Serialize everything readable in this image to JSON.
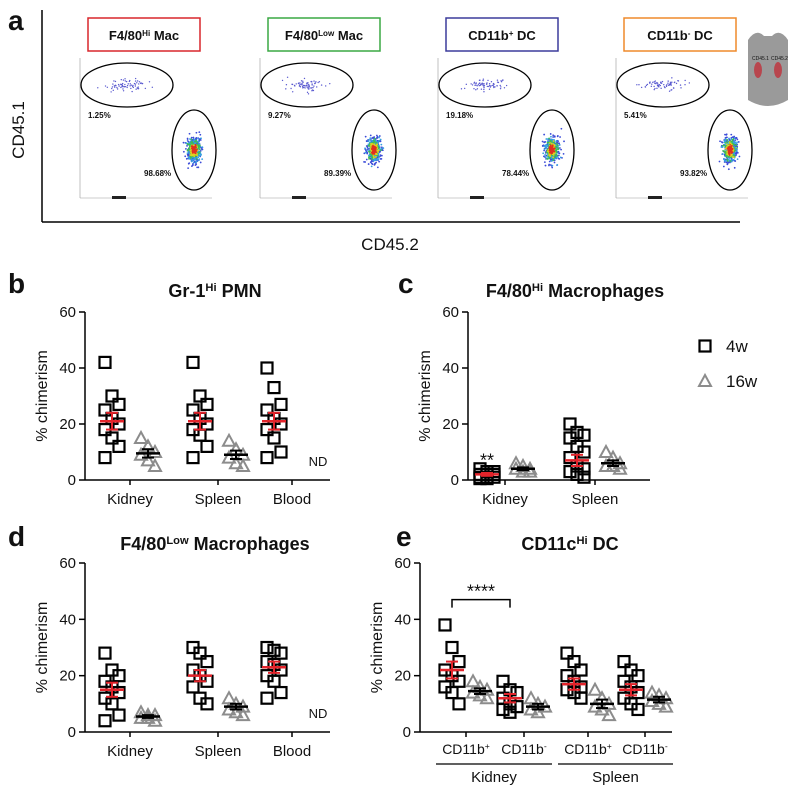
{
  "chart_data": [
    {
      "type": "flow",
      "panel": "a",
      "xlabel": "CD45.2",
      "ylabel": "CD45.1",
      "icon_labels": [
        "CD45.1",
        "CD45.2"
      ],
      "plots": [
        {
          "title": {
            "main": "F4/80",
            "sup": "Hi",
            "rest": " Mac"
          },
          "color": "#d9262c",
          "gates": [
            "1.25%",
            "98.68%"
          ]
        },
        {
          "title": {
            "main": "F4/80",
            "sup": "Low",
            "rest": " Mac"
          },
          "color": "#3aa843",
          "gates": [
            "9.27%",
            "89.39%"
          ]
        },
        {
          "title": {
            "main": "CD11b",
            "sup": "+",
            "rest": " DC"
          },
          "color": "#3b3b9c",
          "gates": [
            "19.18%",
            "78.44%"
          ]
        },
        {
          "title": {
            "main": "CD11b",
            "sup": "-",
            "rest": " DC"
          },
          "color": "#ef8a2b",
          "gates": [
            "5.41%",
            "93.82%"
          ]
        }
      ]
    },
    {
      "type": "dot",
      "panel": "b",
      "title": {
        "main": "Gr-1",
        "sup": "Hi",
        "rest": " PMN"
      },
      "ylabel": "% chimerism",
      "ylim": [
        0,
        60
      ],
      "yticks": [
        0,
        20,
        40,
        60
      ],
      "categories": [
        "Kidney",
        "Spleen",
        "Blood"
      ],
      "nd_label": "ND",
      "series": [
        {
          "name": "4w",
          "marker": "square",
          "color": "#000000",
          "mean_color": "#e3242b",
          "values": [
            [
              42,
              30,
              27,
              25,
              22,
              20,
              18,
              15,
              12,
              8
            ],
            [
              42,
              30,
              27,
              25,
              22,
              20,
              18,
              16,
              12,
              8
            ],
            [
              40,
              33,
              27,
              25,
              22,
              20,
              18,
              15,
              10,
              8
            ]
          ],
          "mean": [
            21,
            21,
            21
          ],
          "sem": [
            3,
            3,
            3
          ]
        },
        {
          "name": "16w",
          "marker": "triangle",
          "color": "#8c8c8c",
          "mean_color": "#000000",
          "values": [
            [
              15,
              12,
              10,
              9,
              7,
              5
            ],
            [
              14,
              11,
              9,
              8,
              6,
              5
            ],
            null
          ],
          "mean": [
            9.5,
            9,
            null
          ],
          "sem": [
            1.5,
            1.5,
            null
          ]
        }
      ]
    },
    {
      "type": "dot",
      "panel": "c",
      "title": {
        "main": "F4/80",
        "sup": "Hi",
        "rest": " Macrophages"
      },
      "ylabel": "% chimerism",
      "ylim": [
        0,
        60
      ],
      "yticks": [
        0,
        20,
        40,
        60
      ],
      "categories": [
        "Kidney",
        "Spleen"
      ],
      "legend": true,
      "significance": "**",
      "series": [
        {
          "name": "4w",
          "marker": "square",
          "color": "#000000",
          "mean_color": "#e3242b",
          "values": [
            [
              4,
              3,
              3,
              2,
              2,
              2,
              1,
              1,
              1,
              0.5,
              0.5
            ],
            [
              20,
              17,
              16,
              15,
              12,
              10,
              8,
              5,
              4,
              3,
              2,
              1
            ]
          ],
          "mean": [
            2,
            7
          ],
          "sem": [
            0.5,
            2
          ]
        },
        {
          "name": "16w",
          "marker": "triangle",
          "color": "#8c8c8c",
          "mean_color": "#000000",
          "values": [
            [
              6,
              5,
              4,
              4,
              3,
              3
            ],
            [
              10,
              8,
              6,
              5,
              5,
              4
            ]
          ],
          "mean": [
            4,
            6
          ],
          "sem": [
            0.5,
            1
          ]
        }
      ]
    },
    {
      "type": "dot",
      "panel": "d",
      "title": {
        "main": "F4/80",
        "sup": "Low",
        "rest": " Macrophages"
      },
      "ylabel": "% chimerism",
      "ylim": [
        0,
        60
      ],
      "yticks": [
        0,
        20,
        40,
        60
      ],
      "categories": [
        "Kidney",
        "Spleen",
        "Blood"
      ],
      "nd_label": "ND",
      "series": [
        {
          "name": "4w",
          "marker": "square",
          "color": "#000000",
          "mean_color": "#e3242b",
          "values": [
            [
              28,
              22,
              20,
              18,
              16,
              14,
              12,
              10,
              6,
              4
            ],
            [
              30,
              28,
              25,
              22,
              20,
              18,
              16,
              12,
              10
            ],
            [
              30,
              29,
              28,
              25,
              24,
              22,
              20,
              18,
              14,
              12
            ]
          ],
          "mean": [
            15,
            20,
            23
          ],
          "sem": [
            2.5,
            2,
            2
          ]
        },
        {
          "name": "16w",
          "marker": "triangle",
          "color": "#8c8c8c",
          "mean_color": "#000000",
          "values": [
            [
              7,
              6,
              6,
              5,
              5,
              4
            ],
            [
              12,
              10,
              9,
              8,
              7,
              6
            ],
            null
          ],
          "mean": [
            5.5,
            9,
            null
          ],
          "sem": [
            0.5,
            1,
            null
          ]
        }
      ]
    },
    {
      "type": "dot",
      "panel": "e",
      "title": {
        "main": "CD11c",
        "sup": "Hi",
        "rest": " DC"
      },
      "ylabel": "% chimerism",
      "ylim": [
        0,
        60
      ],
      "yticks": [
        0,
        20,
        40,
        60
      ],
      "categories": [
        {
          "main": "CD11b",
          "sup": "+"
        },
        {
          "main": "CD11b",
          "sup": "-"
        },
        {
          "main": "CD11b",
          "sup": "+"
        },
        {
          "main": "CD11b",
          "sup": "-"
        }
      ],
      "groups": [
        "Kidney",
        "Spleen"
      ],
      "significance": "****",
      "series": [
        {
          "name": "4w",
          "marker": "square",
          "color": "#000000",
          "mean_color": "#e3242b",
          "values": [
            [
              38,
              30,
              25,
              22,
              20,
              18,
              16,
              14,
              10
            ],
            [
              18,
              15,
              14,
              12,
              10,
              9,
              8,
              7
            ],
            [
              28,
              25,
              22,
              20,
              18,
              16,
              15,
              14,
              12
            ],
            [
              25,
              22,
              20,
              18,
              16,
              14,
              12,
              10,
              8
            ]
          ],
          "mean": [
            22,
            12,
            17,
            15
          ],
          "sem": [
            3,
            1.5,
            2,
            2
          ]
        },
        {
          "name": "16w",
          "marker": "triangle",
          "color": "#8c8c8c",
          "mean_color": "#000000",
          "values": [
            [
              18,
              16,
              15,
              14,
              13,
              12
            ],
            [
              12,
              10,
              9,
              8,
              7
            ],
            [
              15,
              12,
              10,
              9,
              8,
              6
            ],
            [
              14,
              13,
              12,
              11,
              10,
              9
            ]
          ],
          "mean": [
            14.5,
            9,
            10,
            11.5
          ],
          "sem": [
            1,
            1,
            1.5,
            1
          ]
        }
      ]
    }
  ]
}
